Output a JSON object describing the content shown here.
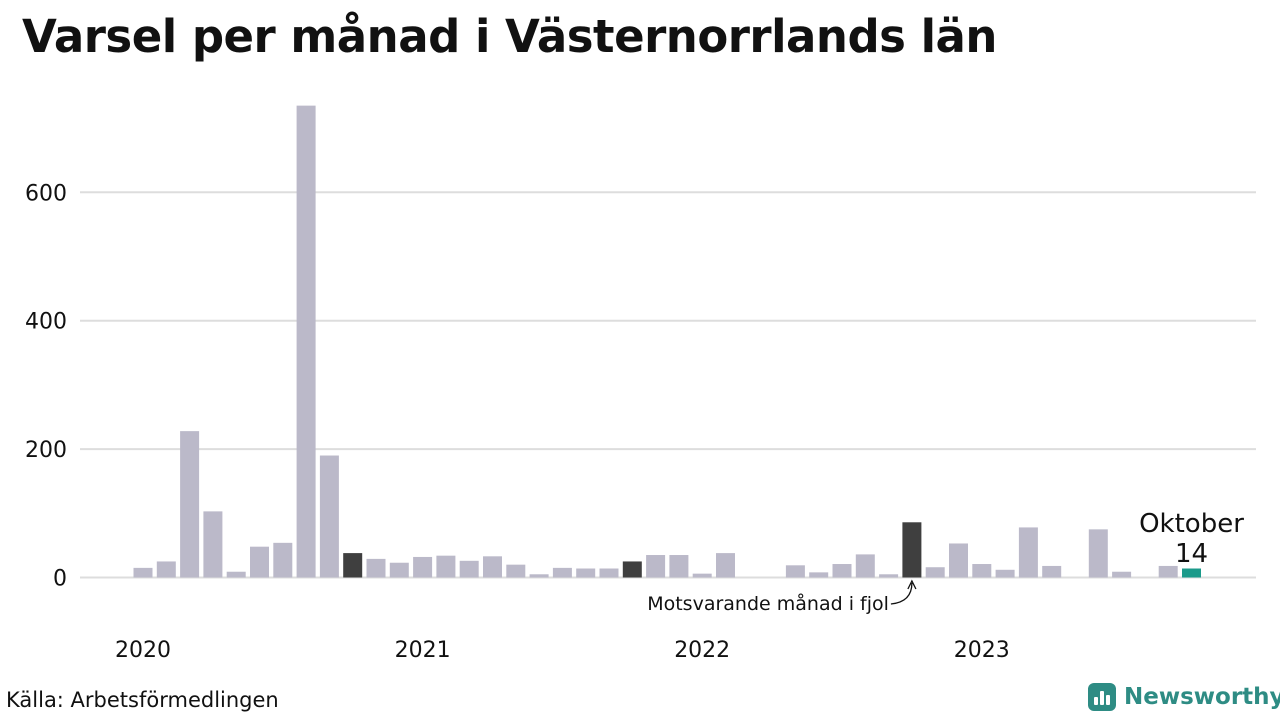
{
  "title": "Varsel per månad i Västernorrlands län",
  "source": "Källa: Arbetsförmedlingen",
  "brand": "Newsworthy",
  "colors": {
    "bar": "#bbb9c9",
    "comparison": "#3f3f3f",
    "current": "#1b9a8a",
    "grid": "#dddddd",
    "brand": "#2e8c84"
  },
  "chart_data": {
    "type": "bar",
    "title": "Varsel per månad i Västernorrlands län",
    "xlabel": "",
    "ylabel": "",
    "ylim": [
      0,
      740
    ],
    "y_ticks": [
      0,
      200,
      400,
      600
    ],
    "x_tick_labels": [
      {
        "label": "2020",
        "month_index": 0
      },
      {
        "label": "2021",
        "month_index": 12
      },
      {
        "label": "2022",
        "month_index": 24
      },
      {
        "label": "2023",
        "month_index": 36
      }
    ],
    "grid": true,
    "categories": [
      "2020-01",
      "2020-02",
      "2020-03",
      "2020-04",
      "2020-05",
      "2020-06",
      "2020-07",
      "2020-08",
      "2020-09",
      "2020-10",
      "2020-11",
      "2020-12",
      "2021-01",
      "2021-02",
      "2021-03",
      "2021-04",
      "2021-05",
      "2021-06",
      "2021-07",
      "2021-08",
      "2021-09",
      "2021-10",
      "2021-11",
      "2021-12",
      "2022-01",
      "2022-02",
      "2022-03",
      "2022-04",
      "2022-05",
      "2022-06",
      "2022-07",
      "2022-08",
      "2022-09",
      "2022-10",
      "2022-11",
      "2022-12",
      "2023-01",
      "2023-02",
      "2023-03",
      "2023-04",
      "2023-05",
      "2023-06",
      "2023-07",
      "2023-08",
      "2023-09",
      "2023-10"
    ],
    "values": [
      15,
      25,
      228,
      103,
      9,
      48,
      54,
      735,
      190,
      38,
      29,
      23,
      32,
      34,
      26,
      33,
      20,
      5,
      15,
      14,
      14,
      25,
      35,
      35,
      6,
      38,
      0,
      0,
      19,
      8,
      21,
      36,
      5,
      86,
      16,
      53,
      21,
      12,
      78,
      18,
      0,
      75,
      9,
      0,
      18,
      14
    ],
    "highlight": {
      "comparison_index": [
        9,
        21,
        33
      ],
      "current_index": 45
    },
    "annotations": [
      {
        "text": "Oktober",
        "target_index": 45
      },
      {
        "text": "14",
        "target_index": 45
      },
      {
        "text": "Motsvarande månad i fjol",
        "target_index": 33
      }
    ]
  }
}
